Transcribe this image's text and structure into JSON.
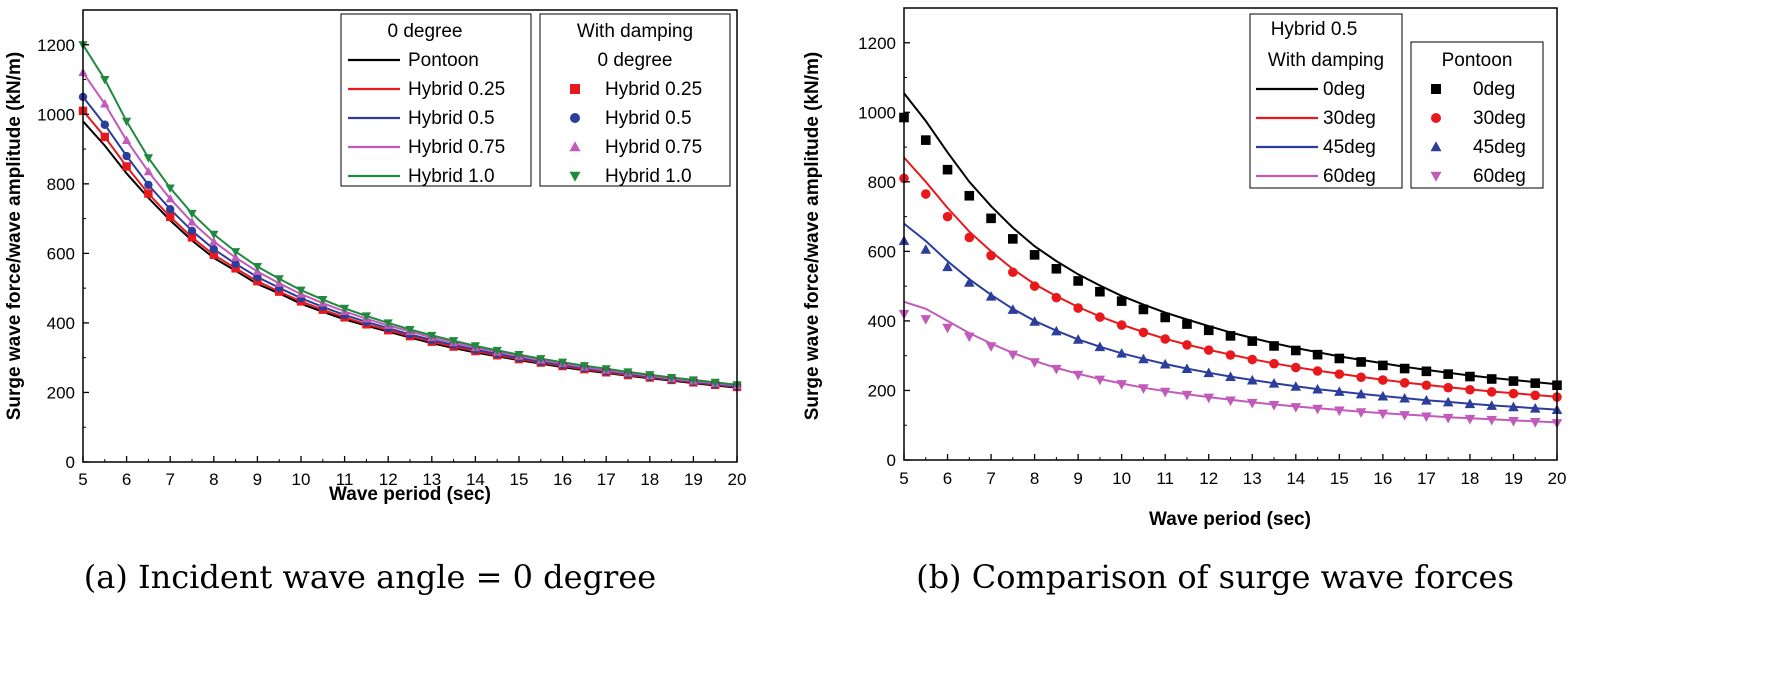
{
  "chart_data": [
    {
      "type": "line",
      "caption": "(a) Incident wave angle = 0 degree",
      "xlabel": "Wave period (sec)",
      "ylabel": "Surge wave force/wave amplitude (kN/m)",
      "xlim": [
        5,
        20
      ],
      "ylim": [
        0,
        1300
      ],
      "xticks": [
        5,
        6,
        7,
        8,
        9,
        10,
        11,
        12,
        13,
        14,
        15,
        16,
        17,
        18,
        19,
        20
      ],
      "yticks": [
        0,
        200,
        400,
        600,
        800,
        1000,
        1200
      ],
      "grid": false,
      "x": [
        5,
        5.5,
        6,
        6.5,
        7,
        7.5,
        8,
        8.5,
        9,
        9.5,
        10,
        10.5,
        11,
        11.5,
        12,
        12.5,
        13,
        13.5,
        14,
        14.5,
        15,
        15.5,
        16,
        16.5,
        17,
        17.5,
        18,
        18.5,
        19,
        19.5,
        20
      ],
      "legend_lines_title": "0 degree",
      "legend_markers_title": [
        "With damping",
        "0 degree"
      ],
      "series": [
        {
          "name": "Pontoon",
          "kind": "line",
          "color": "#000000",
          "values": [
            980,
            910,
            830,
            760,
            695,
            637,
            587,
            550,
            512,
            485,
            455,
            432,
            410,
            392,
            375,
            358,
            342,
            328,
            315,
            304,
            293,
            283,
            273,
            264,
            256,
            248,
            241,
            234,
            227,
            220,
            214
          ]
        },
        {
          "name": "Hybrid 0.25",
          "kind": "line",
          "color": "#e8191c",
          "values": [
            1010,
            935,
            850,
            772,
            705,
            646,
            596,
            557,
            520,
            490,
            462,
            438,
            416,
            396,
            379,
            362,
            346,
            332,
            319,
            307,
            296,
            286,
            276,
            267,
            258,
            250,
            243,
            236,
            229,
            222,
            216
          ]
        },
        {
          "name": "Hybrid 0.5",
          "kind": "line",
          "color": "#2c3e9c",
          "values": [
            1050,
            970,
            880,
            797,
            727,
            665,
            612,
            570,
            532,
            501,
            471,
            446,
            423,
            403,
            385,
            367,
            351,
            337,
            323,
            311,
            299,
            289,
            279,
            270,
            261,
            253,
            245,
            238,
            231,
            224,
            218
          ]
        },
        {
          "name": "Hybrid 0.75",
          "kind": "line",
          "color": "#c25ab9",
          "values": [
            1120,
            1030,
            925,
            835,
            757,
            690,
            634,
            588,
            548,
            514,
            483,
            457,
            433,
            412,
            393,
            375,
            358,
            343,
            329,
            316,
            304,
            293,
            283,
            273,
            264,
            256,
            248,
            240,
            233,
            226,
            220
          ]
        },
        {
          "name": "Hybrid 1.0",
          "kind": "line",
          "color": "#1f8a3e",
          "values": [
            1200,
            1100,
            980,
            875,
            788,
            715,
            655,
            605,
            562,
            527,
            494,
            467,
            442,
            420,
            400,
            381,
            364,
            349,
            334,
            321,
            309,
            297,
            287,
            277,
            268,
            259,
            251,
            243,
            236,
            229,
            222
          ]
        },
        {
          "name": "Hybrid 0.25",
          "kind": "marker",
          "marker": "square",
          "color": "#e8191c",
          "values": [
            1010,
            935,
            850,
            772,
            705,
            646,
            596,
            557,
            520,
            490,
            462,
            438,
            416,
            396,
            379,
            362,
            346,
            332,
            319,
            307,
            296,
            286,
            276,
            267,
            258,
            250,
            243,
            236,
            229,
            222,
            216
          ]
        },
        {
          "name": "Hybrid 0.5",
          "kind": "marker",
          "marker": "circle",
          "color": "#2c3e9c",
          "values": [
            1050,
            970,
            880,
            797,
            727,
            665,
            612,
            570,
            532,
            501,
            471,
            446,
            423,
            403,
            385,
            367,
            351,
            337,
            323,
            311,
            299,
            289,
            279,
            270,
            261,
            253,
            245,
            238,
            231,
            224,
            218
          ]
        },
        {
          "name": "Hybrid 0.75",
          "kind": "marker",
          "marker": "triangle-up",
          "color": "#c25ab9",
          "values": [
            1120,
            1030,
            925,
            835,
            757,
            690,
            634,
            588,
            548,
            514,
            483,
            457,
            433,
            412,
            393,
            375,
            358,
            343,
            329,
            316,
            304,
            293,
            283,
            273,
            264,
            256,
            248,
            240,
            233,
            226,
            220
          ]
        },
        {
          "name": "Hybrid 1.0",
          "kind": "marker",
          "marker": "triangle-down",
          "color": "#1f8a3e",
          "values": [
            1200,
            1100,
            980,
            875,
            788,
            715,
            655,
            605,
            562,
            527,
            494,
            467,
            442,
            420,
            400,
            381,
            364,
            349,
            334,
            321,
            309,
            297,
            287,
            277,
            268,
            259,
            251,
            243,
            236,
            229,
            222
          ]
        }
      ]
    },
    {
      "type": "line",
      "caption": "(b) Comparison of surge wave forces",
      "xlabel": "Wave period (sec)",
      "ylabel": "Surge wave force/wave amplitude (kN/m)",
      "xlim": [
        5,
        20
      ],
      "ylim": [
        0,
        1300
      ],
      "xticks": [
        5,
        6,
        7,
        8,
        9,
        10,
        11,
        12,
        13,
        14,
        15,
        16,
        17,
        18,
        19,
        20
      ],
      "yticks": [
        0,
        200,
        400,
        600,
        800,
        1000,
        1200
      ],
      "grid": false,
      "x": [
        5,
        5.5,
        6,
        6.5,
        7,
        7.5,
        8,
        8.5,
        9,
        9.5,
        10,
        10.5,
        11,
        11.5,
        12,
        12.5,
        13,
        13.5,
        14,
        14.5,
        15,
        15.5,
        16,
        16.5,
        17,
        17.5,
        18,
        18.5,
        19,
        19.5,
        20
      ],
      "legend_lines_title": [
        "Hybrid 0.5",
        "With damping"
      ],
      "legend_markers_title": "Pontoon",
      "series": [
        {
          "name": "0deg",
          "kind": "line",
          "color": "#000000",
          "values": [
            1055,
            975,
            885,
            800,
            730,
            668,
            615,
            572,
            534,
            502,
            472,
            447,
            424,
            404,
            385,
            367,
            351,
            336,
            322,
            310,
            298,
            288,
            278,
            268,
            259,
            251,
            243,
            236,
            230,
            224,
            218
          ]
        },
        {
          "name": "30deg",
          "kind": "line",
          "color": "#e8191c",
          "values": [
            870,
            800,
            725,
            657,
            600,
            549,
            506,
            471,
            440,
            413,
            389,
            368,
            349,
            332,
            317,
            303,
            290,
            278,
            267,
            257,
            248,
            239,
            231,
            223,
            216,
            209,
            203,
            197,
            192,
            187,
            182
          ]
        },
        {
          "name": "45deg",
          "kind": "line",
          "color": "#2c3e9c",
          "values": [
            680,
            630,
            572,
            520,
            475,
            435,
            400,
            372,
            347,
            326,
            307,
            291,
            276,
            263,
            251,
            240,
            230,
            221,
            212,
            204,
            197,
            190,
            184,
            178,
            172,
            167,
            162,
            157,
            153,
            149,
            145
          ]
        },
        {
          "name": "60deg",
          "kind": "line",
          "color": "#c25ab9",
          "values": [
            455,
            435,
            400,
            365,
            335,
            308,
            285,
            265,
            248,
            233,
            220,
            208,
            198,
            189,
            181,
            173,
            166,
            160,
            154,
            149,
            144,
            139,
            135,
            131,
            127,
            123,
            120,
            117,
            114,
            111,
            108
          ]
        },
        {
          "name": "0deg",
          "kind": "marker",
          "marker": "square",
          "color": "#000000",
          "values": [
            985,
            920,
            835,
            760,
            695,
            636,
            590,
            550,
            515,
            484,
            457,
            433,
            410,
            391,
            373,
            357,
            342,
            328,
            315,
            303,
            292,
            282,
            272,
            263,
            255,
            247,
            240,
            233,
            227,
            221,
            215
          ]
        },
        {
          "name": "30deg",
          "kind": "marker",
          "marker": "circle",
          "color": "#e8191c",
          "values": [
            810,
            765,
            700,
            640,
            588,
            540,
            500,
            467,
            437,
            411,
            388,
            367,
            348,
            331,
            316,
            302,
            289,
            277,
            266,
            256,
            247,
            238,
            230,
            222,
            215,
            208,
            202,
            196,
            191,
            186,
            181
          ]
        },
        {
          "name": "45deg",
          "kind": "marker",
          "marker": "triangle-up",
          "color": "#2c3e9c",
          "values": [
            630,
            605,
            555,
            510,
            470,
            432,
            398,
            370,
            346,
            325,
            306,
            290,
            275,
            262,
            250,
            239,
            229,
            220,
            211,
            203,
            196,
            189,
            183,
            177,
            171,
            166,
            161,
            156,
            152,
            148,
            144
          ]
        },
        {
          "name": "60deg",
          "kind": "marker",
          "marker": "triangle-down",
          "color": "#c25ab9",
          "values": [
            420,
            405,
            380,
            355,
            327,
            303,
            281,
            262,
            245,
            231,
            218,
            206,
            196,
            187,
            179,
            171,
            164,
            158,
            152,
            147,
            142,
            137,
            133,
            129,
            125,
            121,
            118,
            115,
            112,
            109,
            106
          ]
        }
      ]
    }
  ]
}
